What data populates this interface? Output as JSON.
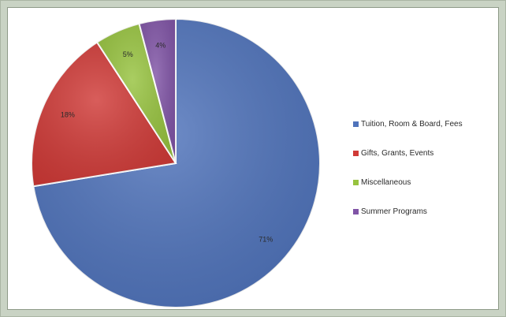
{
  "chart_data": {
    "type": "pie",
    "title": "",
    "slices": [
      {
        "label": "Tuition, Room & Board, Fees",
        "value": 71,
        "display": "71%",
        "color": "#4f73bb"
      },
      {
        "label": "Gifts, Grants, Events",
        "value": 18,
        "display": "18%",
        "color": "#d03a37"
      },
      {
        "label": "Miscellaneous",
        "value": 5,
        "display": "5%",
        "color": "#97c33f"
      },
      {
        "label": "Summer Programs",
        "value": 4,
        "display": "4%",
        "color": "#8054a6"
      }
    ],
    "start_angle": "12 o'clock",
    "direction": "clockwise",
    "legend_position": "right"
  }
}
